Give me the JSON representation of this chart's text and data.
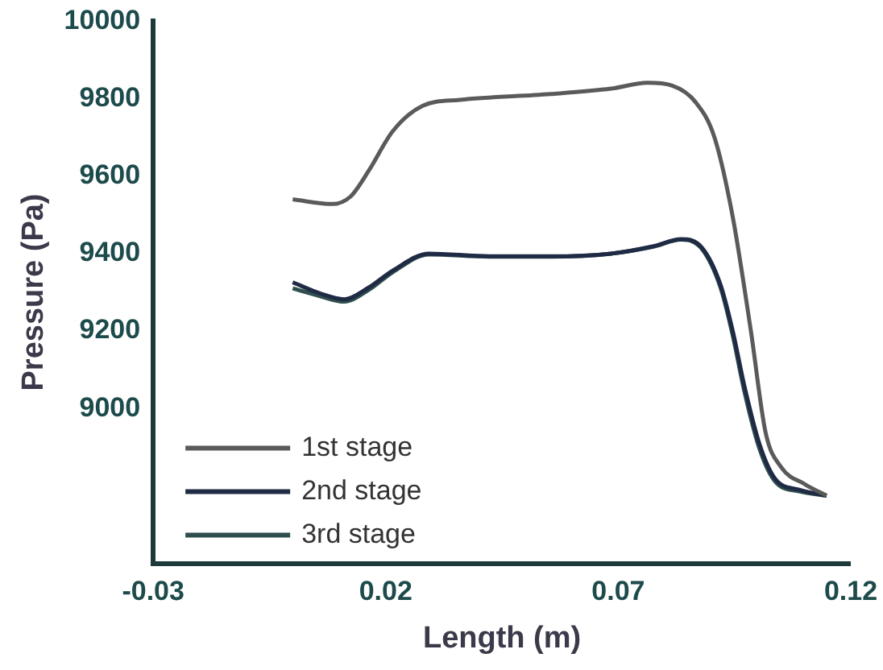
{
  "chart_data": {
    "type": "line",
    "xlabel": "Length (m)",
    "ylabel": "Pressure (Pa)",
    "xlim": [
      -0.03,
      0.12
    ],
    "xticks": [
      -0.03,
      0.02,
      0.07,
      0.12
    ],
    "ylim": [
      8600,
      10000
    ],
    "yticks": [
      9000,
      9200,
      9400,
      9600,
      9800,
      10000
    ],
    "grid": false,
    "legend": "bottom left",
    "marker": "none",
    "series": [
      {
        "name": "1st stage",
        "color": "#5a5a5a",
        "x": [
          0,
          0.0085,
          0.0124,
          0.0163,
          0.0215,
          0.028,
          0.0359,
          0.0554,
          0.0685,
          0.0763,
          0.0815,
          0.0867,
          0.0907,
          0.0946,
          0.0985,
          0.1017,
          0.105,
          0.1102,
          0.1148
        ],
        "values": [
          9540,
          9528,
          9547,
          9613,
          9716,
          9782,
          9797,
          9812,
          9826,
          9841,
          9834,
          9790,
          9700,
          9496,
          9202,
          8937,
          8849,
          8804,
          8775
        ]
      },
      {
        "name": "2nd stage",
        "color": "#1f2a44",
        "x": [
          0,
          0.0059,
          0.0111,
          0.0163,
          0.0215,
          0.0293,
          0.0424,
          0.0554,
          0.0685,
          0.0776,
          0.0835,
          0.088,
          0.092,
          0.0946,
          0.0972,
          0.1004,
          0.1037,
          0.1089,
          0.1148
        ],
        "values": [
          9326,
          9297,
          9282,
          9312,
          9356,
          9400,
          9393,
          9393,
          9400,
          9419,
          9437,
          9415,
          9319,
          9201,
          9054,
          8907,
          8819,
          8790,
          8775
        ]
      },
      {
        "name": "3rd stage",
        "color": "#2f4f4f",
        "x": [
          0,
          0.0059,
          0.0111,
          0.0163,
          0.0215,
          0.0293,
          0.0424,
          0.0554,
          0.0685,
          0.0776,
          0.0835,
          0.088,
          0.092,
          0.0946,
          0.0972,
          0.1004,
          0.1037,
          0.1089,
          0.1148
        ],
        "values": [
          9310,
          9290,
          9276,
          9306,
          9352,
          9398,
          9392,
          9392,
          9400,
          9418,
          9436,
          9412,
          9312,
          9190,
          9040,
          8895,
          8812,
          8786,
          8775
        ]
      }
    ]
  }
}
